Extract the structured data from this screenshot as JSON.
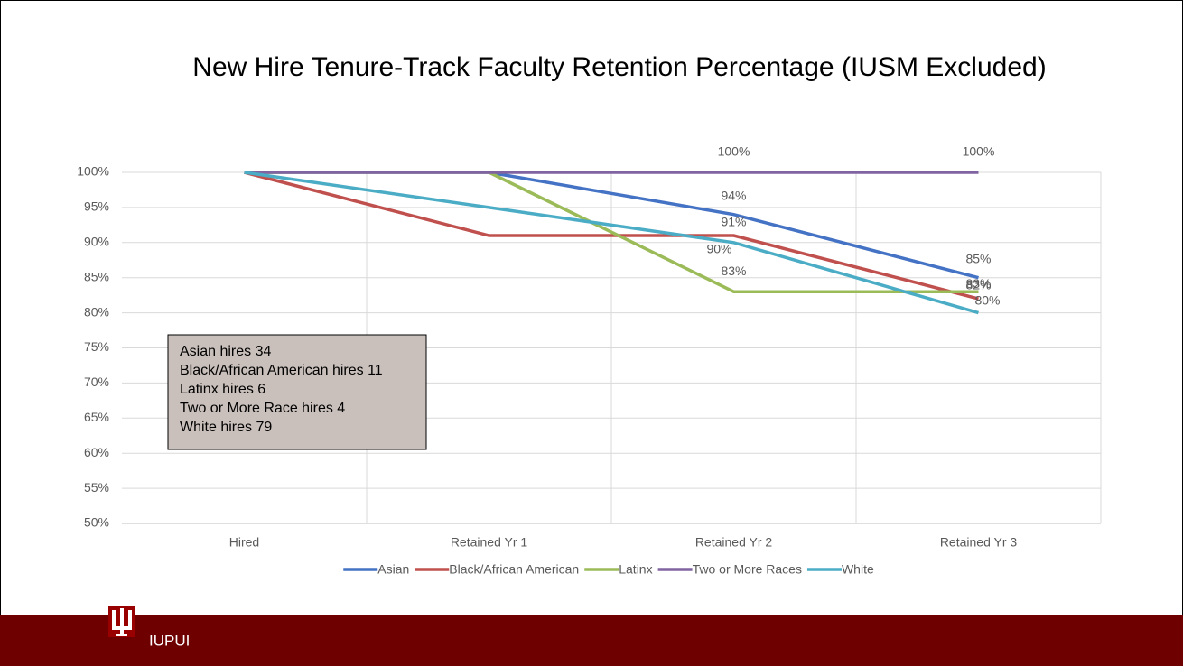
{
  "chart_data": {
    "type": "line",
    "title": "New Hire Tenure-Track Faculty Retention Percentage (IUSM Excluded)",
    "categories": [
      "Hired",
      "Retained Yr 1",
      "Retained Yr 2",
      "Retained Yr 3"
    ],
    "series": [
      {
        "name": "Asian",
        "color": "#4472c4",
        "values": [
          100,
          100,
          94,
          85
        ],
        "value_labels": [
          null,
          null,
          "94%",
          "85%"
        ]
      },
      {
        "name": "Black/African American",
        "color": "#c0504d",
        "values": [
          100,
          91,
          91,
          82
        ],
        "value_labels": [
          null,
          null,
          "91%",
          "82%"
        ]
      },
      {
        "name": "Latinx",
        "color": "#9bbb59",
        "values": [
          100,
          100,
          83,
          83
        ],
        "value_labels": [
          null,
          null,
          "83%",
          "83%"
        ]
      },
      {
        "name": "Two or More Races",
        "color": "#8064a2",
        "values": [
          100,
          100,
          100,
          100
        ],
        "value_labels": [
          null,
          null,
          "100%",
          "100%"
        ]
      },
      {
        "name": "White",
        "color": "#4bacc6",
        "values": [
          100,
          95,
          90,
          80
        ],
        "value_labels": [
          null,
          null,
          "90%",
          "80%"
        ]
      }
    ],
    "ylim": [
      50,
      100
    ],
    "yticks": [
      {
        "value": 50,
        "label": "50%"
      },
      {
        "value": 55,
        "label": "55%"
      },
      {
        "value": 60,
        "label": "60%"
      },
      {
        "value": 65,
        "label": "65%"
      },
      {
        "value": 70,
        "label": "70%"
      },
      {
        "value": 75,
        "label": "75%"
      },
      {
        "value": 80,
        "label": "80%"
      },
      {
        "value": 85,
        "label": "85%"
      },
      {
        "value": 90,
        "label": "90%"
      },
      {
        "value": 95,
        "label": "95%"
      },
      {
        "value": 100,
        "label": "100%"
      }
    ],
    "grid": true,
    "legend": "bottom",
    "annotations": [
      "Asian hires 34",
      "Black/African American hires 11",
      "Latinx hires 6",
      "Two or More Race hires 4",
      "White hires 79"
    ]
  },
  "footer": {
    "text": "IUPUI"
  }
}
